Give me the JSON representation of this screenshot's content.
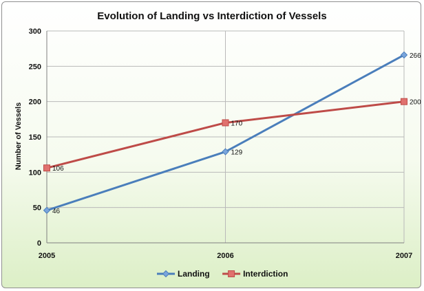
{
  "chart_data": {
    "type": "line",
    "title": "Evolution of Landing vs Interdiction of Vessels",
    "xlabel": "",
    "ylabel": "Number of Vessels",
    "categories": [
      "2005",
      "2006",
      "2007"
    ],
    "ylim": [
      0,
      300
    ],
    "yticks": [
      0,
      50,
      100,
      150,
      200,
      250,
      300
    ],
    "grid": true,
    "legend_position": "bottom",
    "series": [
      {
        "name": "Landing",
        "values": [
          46,
          129,
          266
        ],
        "color": "#4a7ebb",
        "marker": "diamond"
      },
      {
        "name": "Interdiction",
        "values": [
          106,
          170,
          200
        ],
        "color": "#be4b48",
        "marker": "square"
      }
    ]
  }
}
